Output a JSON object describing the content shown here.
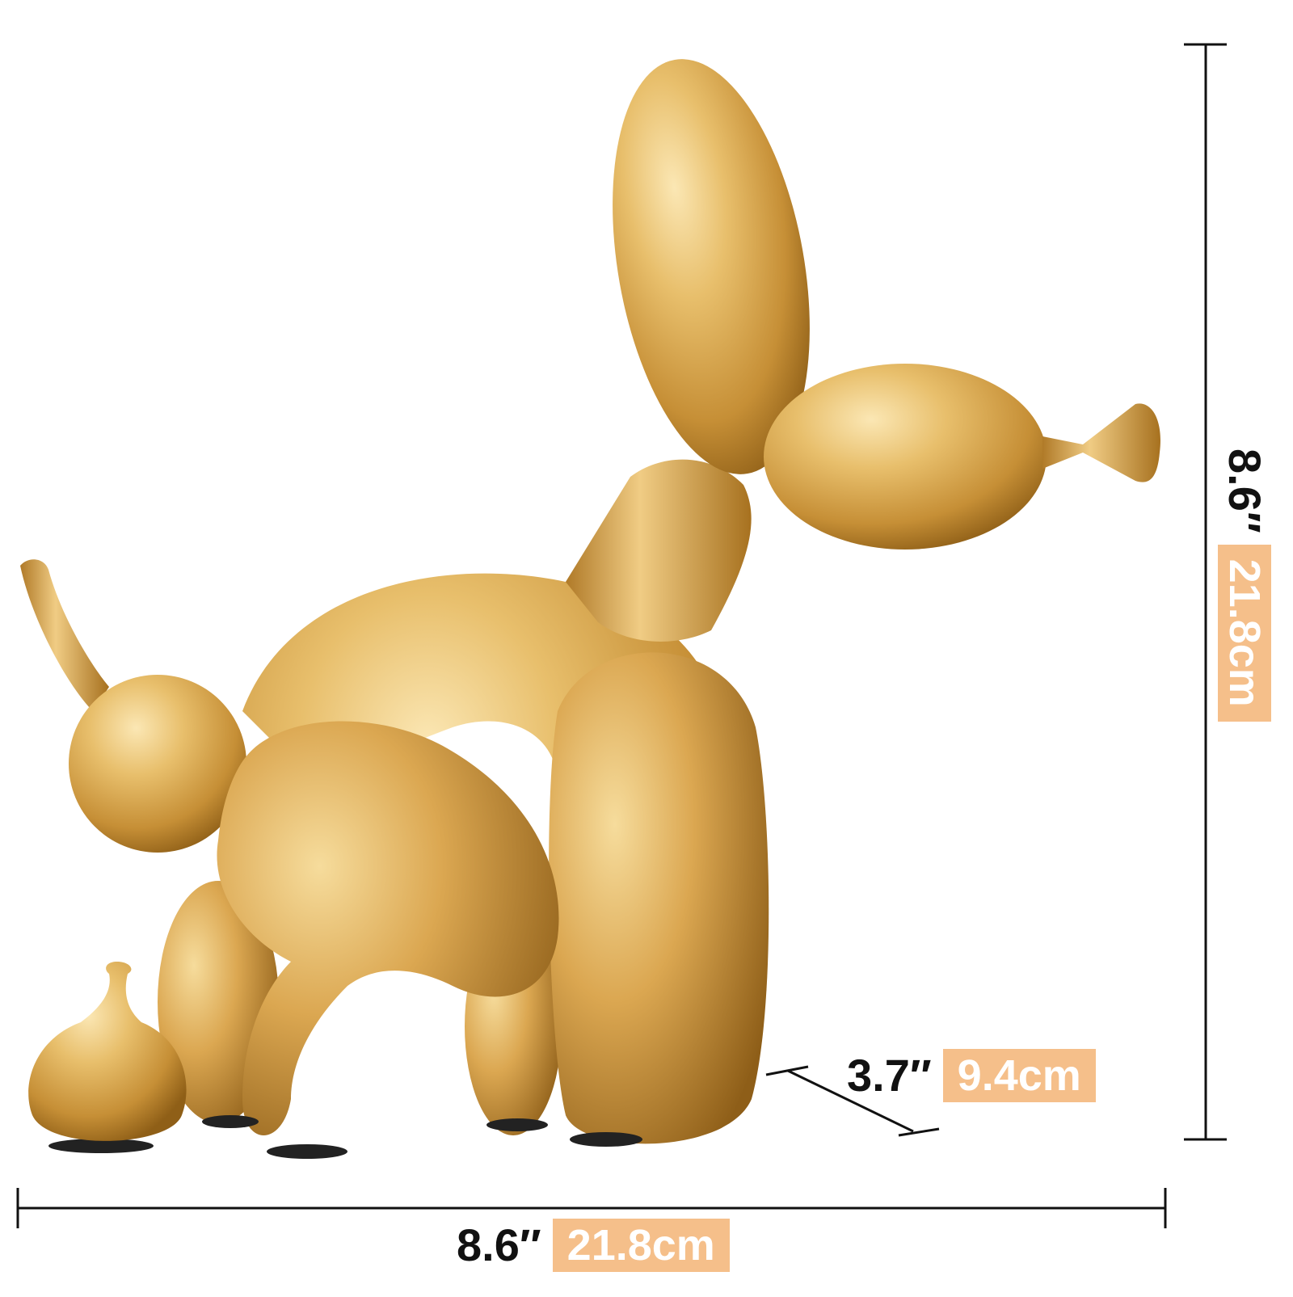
{
  "product_photo": {
    "subject": "gold balloon dog figurine",
    "colors": {
      "gold_light": "#f3d79a",
      "gold_mid": "#d9a954",
      "gold_dark": "#9c6a1e",
      "label_bg": "#f5bf8a",
      "line": "#111111",
      "felt_pad": "#222222"
    }
  },
  "dimensions": {
    "width": {
      "inch": "8.6″",
      "cm": "21.8cm"
    },
    "height": {
      "inch": "8.6″",
      "cm": "21.8cm"
    },
    "depth": {
      "inch": "3.7″",
      "cm": "9.4cm"
    }
  }
}
